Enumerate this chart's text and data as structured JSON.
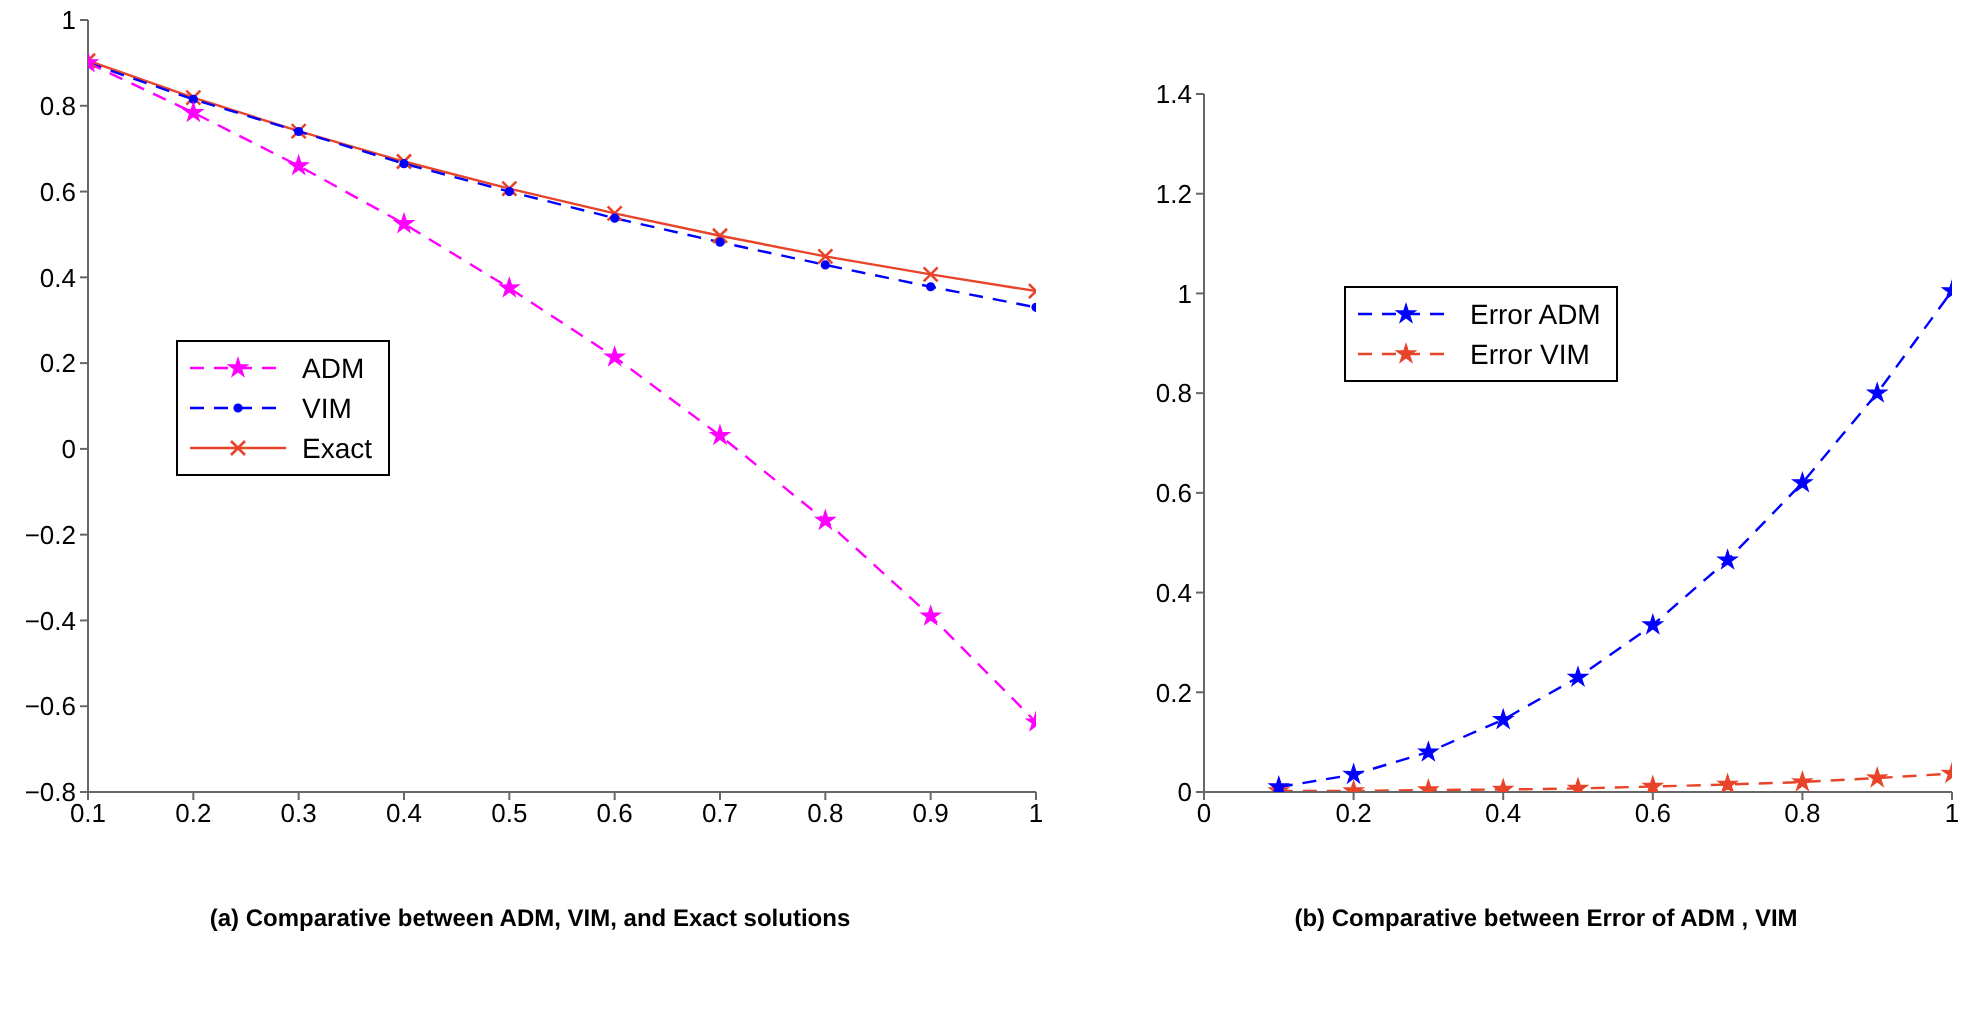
{
  "chart_data": [
    {
      "type": "line",
      "title": "(a) Comparative between ADM, VIM, and Exact solutions",
      "x": [
        0.1,
        0.2,
        0.3,
        0.4,
        0.5,
        0.6,
        0.7,
        0.8,
        0.9,
        1
      ],
      "xlim": [
        0.1,
        1
      ],
      "xticks": [
        0.1,
        0.2,
        0.3,
        0.4,
        0.5,
        0.6,
        0.7,
        0.8,
        0.9,
        1
      ],
      "ylim": [
        -0.8,
        1
      ],
      "yticks": [
        -0.8,
        -0.6,
        -0.4,
        -0.2,
        0,
        0.2,
        0.4,
        0.6,
        0.8,
        1
      ],
      "grid": false,
      "legend": "center left",
      "series": [
        {
          "name": "ADM",
          "color": "#ff00ff",
          "marker": "star",
          "line_style": "dashed",
          "values": [
            0.9,
            0.784,
            0.66,
            0.525,
            0.375,
            0.214,
            0.031,
            -0.167,
            -0.39,
            -0.637
          ]
        },
        {
          "name": "VIM",
          "color": "#0000ff",
          "marker": "circle",
          "line_style": "dashed",
          "values": [
            0.9,
            0.815,
            0.74,
            0.665,
            0.6,
            0.538,
            0.482,
            0.429,
            0.378,
            0.33
          ]
        },
        {
          "name": "Exact",
          "color": "#e8442a",
          "marker": "cross",
          "line_style": "solid",
          "values": [
            0.905,
            0.819,
            0.741,
            0.67,
            0.607,
            0.549,
            0.497,
            0.449,
            0.407,
            0.368
          ]
        }
      ]
    },
    {
      "type": "line",
      "title": "(b) Comparative between Error of ADM , VIM",
      "x": [
        0.1,
        0.2,
        0.3,
        0.4,
        0.5,
        0.6,
        0.7,
        0.8,
        0.9,
        1
      ],
      "xlim": [
        0,
        1
      ],
      "xticks": [
        0,
        0.2,
        0.4,
        0.6,
        0.8,
        1
      ],
      "ylim": [
        0,
        1.4
      ],
      "yticks": [
        0,
        0.2,
        0.4,
        0.6,
        0.8,
        1,
        1.2,
        1.4
      ],
      "grid": false,
      "legend": "top left",
      "series": [
        {
          "name": "Error ADM",
          "color": "#0000ff",
          "marker": "star",
          "line_style": "dashed",
          "values": [
            0.01,
            0.035,
            0.08,
            0.145,
            0.23,
            0.335,
            0.465,
            0.62,
            0.8,
            1.005
          ]
        },
        {
          "name": "Error VIM",
          "color": "#e8442a",
          "marker": "star",
          "line_style": "dashed",
          "values": [
            0.002,
            0.002,
            0.004,
            0.005,
            0.007,
            0.011,
            0.015,
            0.02,
            0.028,
            0.037
          ]
        }
      ]
    }
  ]
}
